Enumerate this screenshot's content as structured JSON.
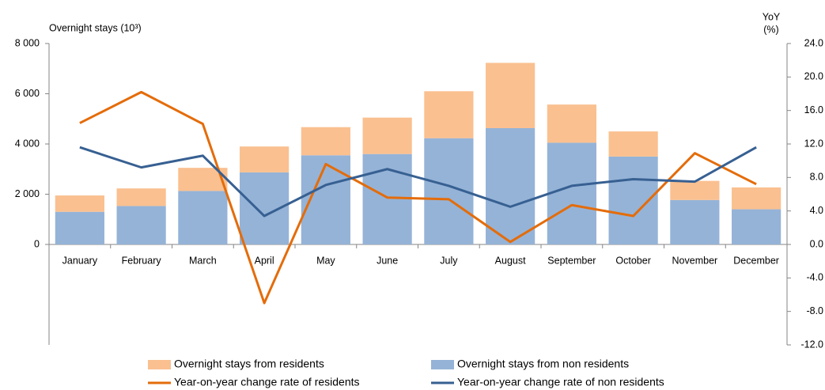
{
  "chart_data": {
    "type": "bar",
    "y_label": "Overnight stays (10³)",
    "y2_label": [
      "YoY",
      "(%)"
    ],
    "categories": [
      "January",
      "February",
      "March",
      "April",
      "May",
      "June",
      "July",
      "August",
      "September",
      "October",
      "November",
      "December"
    ],
    "series": [
      {
        "name": "Overnight stays from residents",
        "type": "bar",
        "color": "#fac090",
        "values": [
          650,
          700,
          920,
          1030,
          1120,
          1450,
          1870,
          2600,
          1520,
          1000,
          760,
          870
        ]
      },
      {
        "name": "Overnight stays from non residents",
        "type": "bar",
        "color": "#95b3d7",
        "values": [
          1300,
          1530,
          2130,
          2870,
          3550,
          3600,
          4230,
          4630,
          4050,
          3500,
          1770,
          1400
        ]
      },
      {
        "name": "Year-on-year change rate of residents",
        "type": "line",
        "axis": "y2",
        "color": "#e46c0a",
        "values": [
          14.5,
          18.2,
          14.4,
          -7.0,
          9.6,
          5.6,
          5.4,
          0.3,
          4.7,
          3.4,
          10.9,
          7.2
        ]
      },
      {
        "name": "Year-on-year change rate of non residents",
        "type": "line",
        "axis": "y2",
        "color": "#376092",
        "values": [
          11.6,
          9.2,
          10.6,
          3.4,
          7.1,
          9.0,
          7.0,
          4.5,
          7.0,
          7.8,
          7.5,
          11.6
        ]
      }
    ],
    "ylim": [
      -4000,
      8000
    ],
    "yticks": [
      0,
      {
        "value": 2000,
        "label": "2 000"
      },
      {
        "value": 4000,
        "label": "4 000"
      },
      {
        "value": 6000,
        "label": "6 000"
      },
      {
        "value": 8000,
        "label": "8 000"
      }
    ],
    "y2lim": [
      -12,
      24
    ],
    "y2ticks": [
      {
        "value": -12,
        "label": "-12.0"
      },
      {
        "value": -8,
        "label": "-8.0"
      },
      {
        "value": -4,
        "label": "-4.0"
      },
      {
        "value": 0,
        "label": "0.0"
      },
      {
        "value": 4,
        "label": "4.0"
      },
      {
        "value": 8,
        "label": "8.0"
      },
      {
        "value": 12,
        "label": "12.0"
      },
      {
        "value": 16,
        "label": "16.0"
      },
      {
        "value": 20,
        "label": "20.0"
      },
      {
        "value": 24,
        "label": "24.0"
      }
    ],
    "grid": false
  }
}
